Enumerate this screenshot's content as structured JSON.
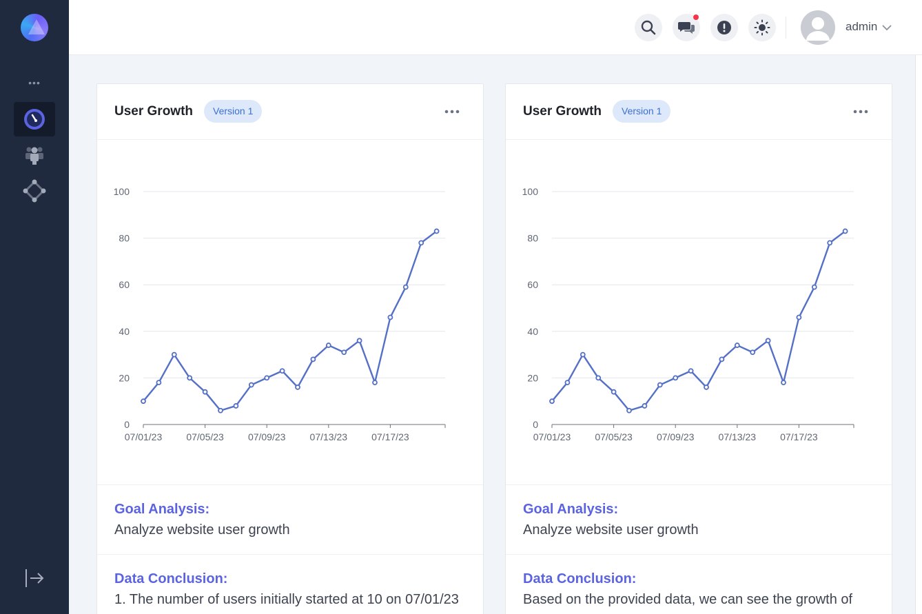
{
  "header": {
    "username": "admin",
    "icons": [
      "search-icon",
      "chat-icon",
      "alert-icon",
      "theme-sun-icon",
      "user-avatar-icon",
      "chevron-down-icon"
    ],
    "notification_dot_color": "#f5354b"
  },
  "sidebar": {
    "more_label": "•••",
    "items": [
      {
        "name": "dashboard",
        "icon": "dashboard-icon",
        "active": true
      },
      {
        "name": "users",
        "icon": "users-icon",
        "active": false
      },
      {
        "name": "nodes",
        "icon": "nodes-icon",
        "active": false
      }
    ],
    "collapse_icon": "collapse-arrow-icon"
  },
  "cards": [
    {
      "title": "User Growth",
      "version": "Version 1",
      "goal_label": "Goal Analysis:",
      "goal_text": "Analyze website user growth",
      "conclusion_label": "Data Conclusion:",
      "conclusion_text": "1. The number of users initially started at 10 on 07/01/23"
    },
    {
      "title": "User Growth",
      "version": "Version 1",
      "goal_label": "Goal Analysis:",
      "goal_text": "Analyze website user growth",
      "conclusion_label": "Data Conclusion:",
      "conclusion_text": "Based on the provided data, we can see the growth of"
    }
  ],
  "chart_data": [
    {
      "type": "line",
      "x": [
        "07/01/23",
        "07/02/23",
        "07/03/23",
        "07/04/23",
        "07/05/23",
        "07/06/23",
        "07/07/23",
        "07/08/23",
        "07/09/23",
        "07/10/23",
        "07/11/23",
        "07/12/23",
        "07/13/23",
        "07/14/23",
        "07/15/23",
        "07/16/23",
        "07/17/23",
        "07/18/23",
        "07/19/23",
        "07/20/23"
      ],
      "xticks": [
        "07/01/23",
        "07/05/23",
        "07/09/23",
        "07/13/23",
        "07/17/23"
      ],
      "values": [
        10,
        18,
        30,
        20,
        14,
        6,
        8,
        17,
        20,
        23,
        16,
        28,
        34,
        31,
        36,
        18,
        46,
        59,
        78,
        83
      ],
      "yticks": [
        0,
        20,
        40,
        60,
        80,
        100
      ],
      "ylim": [
        0,
        100
      ],
      "color": "#5470c6",
      "grid": true
    },
    {
      "type": "line",
      "x": [
        "07/01/23",
        "07/02/23",
        "07/03/23",
        "07/04/23",
        "07/05/23",
        "07/06/23",
        "07/07/23",
        "07/08/23",
        "07/09/23",
        "07/10/23",
        "07/11/23",
        "07/12/23",
        "07/13/23",
        "07/14/23",
        "07/15/23",
        "07/16/23",
        "07/17/23",
        "07/18/23",
        "07/19/23",
        "07/20/23"
      ],
      "xticks": [
        "07/01/23",
        "07/05/23",
        "07/09/23",
        "07/13/23",
        "07/17/23"
      ],
      "values": [
        10,
        18,
        30,
        20,
        14,
        6,
        8,
        17,
        20,
        23,
        16,
        28,
        34,
        31,
        36,
        18,
        46,
        59,
        78,
        83
      ],
      "yticks": [
        0,
        20,
        40,
        60,
        80,
        100
      ],
      "ylim": [
        0,
        100
      ],
      "color": "#5470c6",
      "grid": true
    }
  ]
}
